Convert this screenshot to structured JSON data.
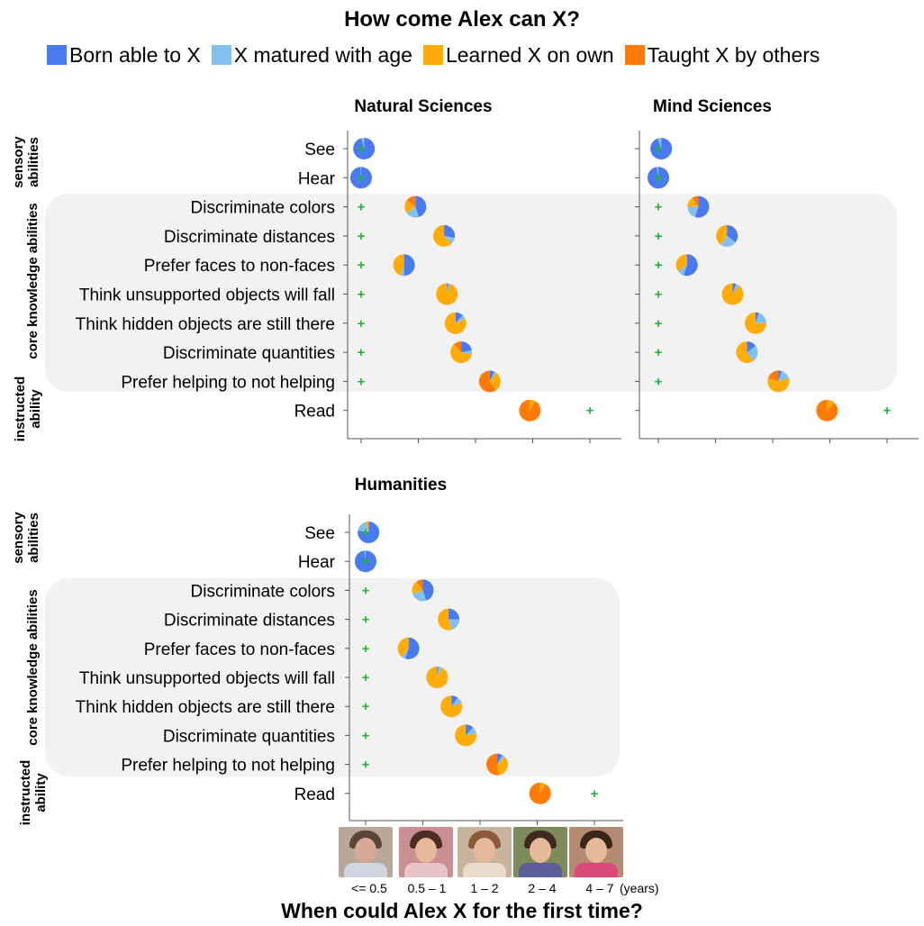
{
  "title": "How come Alex can X?",
  "legend": [
    {
      "label": "Born able to X",
      "color": "#4a7af0"
    },
    {
      "label": "X matured with age",
      "color": "#82c1ef"
    },
    {
      "label": "Learned X on own",
      "color": "#ffab08"
    },
    {
      "label": "Taught X by others",
      "color": "#ff7a06"
    }
  ],
  "marker_color": "#22b33a",
  "group_labels": [
    "sensory abilities",
    "core knowledge abilities",
    "instructed ability"
  ],
  "x_axis": {
    "caption": "When could Alex X for the first time?",
    "tick_labels": [
      "<= 0.5",
      "0.5 – 1",
      "1 – 2",
      "2 – 4",
      "4 – 7"
    ],
    "unit_label": "(years)"
  },
  "chart_data": [
    {
      "type": "scatter",
      "title": "Natural Sciences",
      "categories": [
        "See",
        "Hear",
        "Discriminate colors",
        "Discriminate distances",
        "Prefer faces to non-faces",
        "Think unsupported objects will fall",
        "Think hidden objects are still there",
        "Discriminate quantities",
        "Prefer helping to not helping",
        "Read"
      ],
      "x_age_bin_position": [
        0.05,
        0.0,
        0.95,
        1.45,
        0.75,
        1.5,
        1.65,
        1.75,
        2.25,
        2.95
      ],
      "marker_x_age_bin_position": [
        0,
        0,
        0,
        0,
        0,
        0,
        0,
        0,
        0,
        4
      ],
      "proportions": [
        {
          "born": 0.96,
          "matured": 0.04,
          "learned": 0.0,
          "taught": 0.0
        },
        {
          "born": 0.99,
          "matured": 0.01,
          "learned": 0.0,
          "taught": 0.0
        },
        {
          "born": 0.45,
          "matured": 0.2,
          "learned": 0.2,
          "taught": 0.15
        },
        {
          "born": 0.28,
          "matured": 0.1,
          "learned": 0.62,
          "taught": 0.0
        },
        {
          "born": 0.5,
          "matured": 0.05,
          "learned": 0.45,
          "taught": 0.0
        },
        {
          "born": 0.02,
          "matured": 0.03,
          "learned": 0.95,
          "taught": 0.0
        },
        {
          "born": 0.12,
          "matured": 0.06,
          "learned": 0.82,
          "taught": 0.0
        },
        {
          "born": 0.22,
          "matured": 0.06,
          "learned": 0.6,
          "taught": 0.12
        },
        {
          "born": 0.07,
          "matured": 0.03,
          "learned": 0.3,
          "taught": 0.6
        },
        {
          "born": 0.0,
          "matured": 0.0,
          "learned": 0.08,
          "taught": 0.92
        }
      ]
    },
    {
      "type": "scatter",
      "title": "Mind Sciences",
      "categories": [
        "See",
        "Hear",
        "Discriminate colors",
        "Discriminate distances",
        "Prefer faces to non-faces",
        "Think unsupported objects will fall",
        "Think hidden objects are still there",
        "Discriminate quantities",
        "Prefer helping to not helping",
        "Read"
      ],
      "x_age_bin_position": [
        0.05,
        0.0,
        0.7,
        1.2,
        0.5,
        1.3,
        1.7,
        1.55,
        2.1,
        2.95
      ],
      "marker_x_age_bin_position": [
        0,
        0,
        0,
        0,
        0,
        0,
        0,
        0,
        0,
        4
      ],
      "proportions": [
        {
          "born": 0.95,
          "matured": 0.05,
          "learned": 0.0,
          "taught": 0.0
        },
        {
          "born": 0.98,
          "matured": 0.02,
          "learned": 0.0,
          "taught": 0.0
        },
        {
          "born": 0.55,
          "matured": 0.2,
          "learned": 0.15,
          "taught": 0.1
        },
        {
          "born": 0.35,
          "matured": 0.25,
          "learned": 0.4,
          "taught": 0.0
        },
        {
          "born": 0.55,
          "matured": 0.1,
          "learned": 0.35,
          "taught": 0.0
        },
        {
          "born": 0.05,
          "matured": 0.05,
          "learned": 0.9,
          "taught": 0.0
        },
        {
          "born": 0.05,
          "matured": 0.2,
          "learned": 0.75,
          "taught": 0.0
        },
        {
          "born": 0.15,
          "matured": 0.25,
          "learned": 0.6,
          "taught": 0.0
        },
        {
          "born": 0.05,
          "matured": 0.15,
          "learned": 0.6,
          "taught": 0.2
        },
        {
          "born": 0.0,
          "matured": 0.0,
          "learned": 0.12,
          "taught": 0.88
        }
      ]
    },
    {
      "type": "scatter",
      "title": "Humanities",
      "categories": [
        "See",
        "Hear",
        "Discriminate colors",
        "Discriminate distances",
        "Prefer faces to non-faces",
        "Think unsupported objects will fall",
        "Think hidden objects are still there",
        "Discriminate quantities",
        "Prefer helping to not helping",
        "Read"
      ],
      "x_age_bin_position": [
        0.05,
        0.0,
        1.0,
        1.45,
        0.75,
        1.25,
        1.5,
        1.75,
        2.3,
        3.05
      ],
      "marker_x_age_bin_position": [
        0,
        0,
        0,
        0,
        0,
        0,
        0,
        0,
        0,
        4
      ],
      "proportions": [
        {
          "born": 0.78,
          "matured": 0.17,
          "learned": 0.05,
          "taught": 0.0
        },
        {
          "born": 0.98,
          "matured": 0.02,
          "learned": 0.0,
          "taught": 0.0
        },
        {
          "born": 0.45,
          "matured": 0.25,
          "learned": 0.2,
          "taught": 0.1
        },
        {
          "born": 0.25,
          "matured": 0.2,
          "learned": 0.55,
          "taught": 0.0
        },
        {
          "born": 0.55,
          "matured": 0.05,
          "learned": 0.4,
          "taught": 0.0
        },
        {
          "born": 0.02,
          "matured": 0.05,
          "learned": 0.93,
          "taught": 0.0
        },
        {
          "born": 0.1,
          "matured": 0.1,
          "learned": 0.8,
          "taught": 0.0
        },
        {
          "born": 0.12,
          "matured": 0.1,
          "learned": 0.78,
          "taught": 0.0
        },
        {
          "born": 0.08,
          "matured": 0.05,
          "learned": 0.35,
          "taught": 0.52
        },
        {
          "born": 0.0,
          "matured": 0.0,
          "learned": 0.08,
          "taught": 0.92
        }
      ]
    }
  ]
}
